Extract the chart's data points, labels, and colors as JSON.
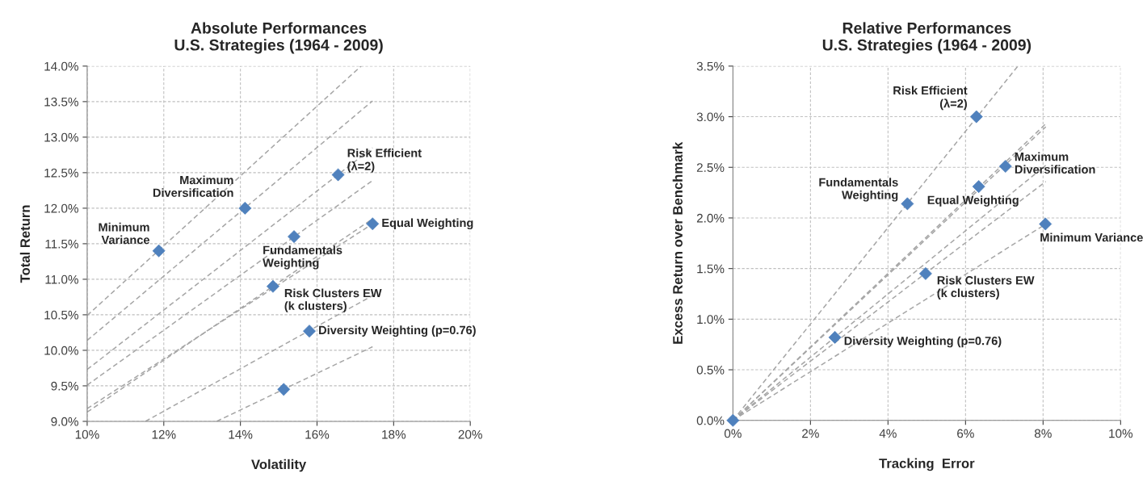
{
  "chart_data": [
    {
      "type": "scatter",
      "title": "Absolute Performances\nU.S. Strategies (1964 - 2009)",
      "xlabel": "Volatility",
      "ylabel": "Total Return",
      "xlim": [
        10,
        20
      ],
      "xticks": [
        {
          "value": 10,
          "label": "10%"
        },
        {
          "value": 12,
          "label": "12%"
        },
        {
          "value": 14,
          "label": "14%"
        },
        {
          "value": 16,
          "label": "16%"
        },
        {
          "value": 18,
          "label": "18%"
        },
        {
          "value": 20,
          "label": "20%"
        }
      ],
      "ylim": [
        9,
        14
      ],
      "yticks": [
        {
          "value": 9,
          "label": "9.0%"
        },
        {
          "value": 9.5,
          "label": "9.5%"
        },
        {
          "value": 10,
          "label": "10.0%"
        },
        {
          "value": 10.5,
          "label": "10.5%"
        },
        {
          "value": 11,
          "label": "11.0%"
        },
        {
          "value": 11.5,
          "label": "11.5%"
        },
        {
          "value": 12,
          "label": "12.0%"
        },
        {
          "value": 12.5,
          "label": "12.5%"
        },
        {
          "value": 13,
          "label": "13.0%"
        },
        {
          "value": 13.5,
          "label": "13.5%"
        },
        {
          "value": 14,
          "label": "14.0%"
        }
      ],
      "grid": true,
      "legend": false,
      "series": [
        {
          "type": "line",
          "color": "#a6a6a6",
          "line_style": "dashed",
          "marker": "none",
          "x": [
            10,
            17.15
          ],
          "values": [
            10.49,
            14.0
          ]
        },
        {
          "type": "line",
          "color": "#a6a6a6",
          "line_style": "dashed",
          "marker": "none",
          "x": [
            10,
            17.45
          ],
          "values": [
            10.14,
            13.51
          ]
        },
        {
          "type": "line",
          "color": "#a6a6a6",
          "line_style": "dashed",
          "marker": "none",
          "x": [
            10,
            17.45
          ],
          "values": [
            9.73,
            12.85
          ]
        },
        {
          "type": "line",
          "color": "#a6a6a6",
          "line_style": "dashed",
          "marker": "none",
          "x": [
            10,
            17.45
          ],
          "values": [
            9.51,
            12.39
          ]
        },
        {
          "type": "line",
          "color": "#a6a6a6",
          "line_style": "dashed",
          "marker": "none",
          "x": [
            10,
            17.45
          ],
          "values": [
            9.18,
            11.78
          ]
        },
        {
          "type": "line",
          "color": "#a6a6a6",
          "line_style": "dashed",
          "marker": "none",
          "x": [
            10,
            17.45
          ],
          "values": [
            9.13,
            11.85
          ]
        },
        {
          "type": "line",
          "color": "#a6a6a6",
          "line_style": "dashed",
          "marker": "none",
          "x": [
            11.52,
            17.45
          ],
          "values": [
            9.0,
            10.77
          ]
        },
        {
          "type": "line",
          "color": "#a6a6a6",
          "line_style": "dashed",
          "marker": "none",
          "x": [
            13.38,
            17.45
          ],
          "values": [
            9.0,
            10.05
          ]
        },
        {
          "color": "#4f81bd",
          "marker": "diamond",
          "x": [
            11.87,
            14.12,
            16.55,
            15.4,
            17.45,
            14.85,
            15.8,
            15.13
          ],
          "values": [
            11.4,
            12.0,
            12.47,
            11.6,
            11.78,
            10.9,
            10.27,
            9.45
          ]
        }
      ],
      "annotations": [
        {
          "text": "Minimum\nVariance",
          "x": 11.87,
          "y": 11.4
        },
        {
          "text": "Maximum\nDiversification",
          "x": 14.12,
          "y": 12.0
        },
        {
          "text": "Risk Efficient\n(λ=2)",
          "x": 16.55,
          "y": 12.47
        },
        {
          "text": "Fundamentals\nWeighting",
          "x": 15.4,
          "y": 11.6
        },
        {
          "text": "Equal Weighting",
          "x": 17.45,
          "y": 11.78
        },
        {
          "text": "Risk Clusters EW\n(k clusters)",
          "x": 14.85,
          "y": 10.9
        },
        {
          "text": "Diversity Weighting (p=0.76)",
          "x": 15.8,
          "y": 10.27
        }
      ]
    },
    {
      "type": "scatter",
      "title": "Relative Performances\nU.S. Strategies (1964 - 2009)",
      "xlabel": "Tracking  Error",
      "ylabel": "Excess Return over Benchmark",
      "xlim": [
        0,
        10
      ],
      "xticks": [
        {
          "value": 0,
          "label": "0%"
        },
        {
          "value": 2,
          "label": "2%"
        },
        {
          "value": 4,
          "label": "4%"
        },
        {
          "value": 6,
          "label": "6%"
        },
        {
          "value": 8,
          "label": "8%"
        },
        {
          "value": 10,
          "label": "10%"
        }
      ],
      "ylim": [
        0,
        3.5
      ],
      "yticks": [
        {
          "value": 0,
          "label": "0.0%"
        },
        {
          "value": 0.5,
          "label": "0.5%"
        },
        {
          "value": 1,
          "label": "1.0%"
        },
        {
          "value": 1.5,
          "label": "1.5%"
        },
        {
          "value": 2,
          "label": "2.0%"
        },
        {
          "value": 2.5,
          "label": "2.5%"
        },
        {
          "value": 3,
          "label": "3.0%"
        },
        {
          "value": 3.5,
          "label": "3.5%"
        }
      ],
      "grid": true,
      "legend": false,
      "series": [
        {
          "type": "line",
          "color": "#a6a6a6",
          "line_style": "dashed",
          "marker": "none",
          "x": [
            0,
            7.35
          ],
          "values": [
            0,
            3.5
          ]
        },
        {
          "type": "line",
          "color": "#a6a6a6",
          "line_style": "dashed",
          "marker": "none",
          "x": [
            0,
            8.07
          ],
          "values": [
            0,
            2.9
          ]
        },
        {
          "type": "line",
          "color": "#a6a6a6",
          "line_style": "dashed",
          "marker": "none",
          "x": [
            0,
            8.07
          ],
          "values": [
            0,
            2.93
          ]
        },
        {
          "type": "line",
          "color": "#a6a6a6",
          "line_style": "dashed",
          "marker": "none",
          "x": [
            0,
            8.07
          ],
          "values": [
            0,
            2.52
          ]
        },
        {
          "type": "line",
          "color": "#a6a6a6",
          "line_style": "dashed",
          "marker": "none",
          "x": [
            0,
            8.07
          ],
          "values": [
            0,
            2.36
          ]
        },
        {
          "type": "line",
          "color": "#a6a6a6",
          "line_style": "dashed",
          "marker": "none",
          "x": [
            0,
            8.07
          ],
          "values": [
            0,
            1.94
          ]
        },
        {
          "color": "#4f81bd",
          "marker": "diamond",
          "x": [
            6.28,
            4.5,
            7.03,
            6.34,
            8.06,
            4.97,
            2.63,
            0
          ],
          "values": [
            3.0,
            2.14,
            2.51,
            2.31,
            1.94,
            1.45,
            0.82,
            0
          ]
        }
      ],
      "annotations": [
        {
          "text": "Risk Efficient\n(λ=2)",
          "x": 6.28,
          "y": 3.0
        },
        {
          "text": "Fundamentals\nWeighting",
          "x": 4.5,
          "y": 2.14
        },
        {
          "text": "Maximum\nDiversification",
          "x": 7.03,
          "y": 2.51
        },
        {
          "text": "Equal Weighting",
          "x": 6.34,
          "y": 2.31
        },
        {
          "text": "Minimum Variance",
          "x": 8.06,
          "y": 1.94
        },
        {
          "text": "Risk Clusters EW\n(k clusters)",
          "x": 4.97,
          "y": 1.45
        },
        {
          "text": "Diversity Weighting (p=0.76)",
          "x": 2.63,
          "y": 0.82
        }
      ]
    }
  ]
}
